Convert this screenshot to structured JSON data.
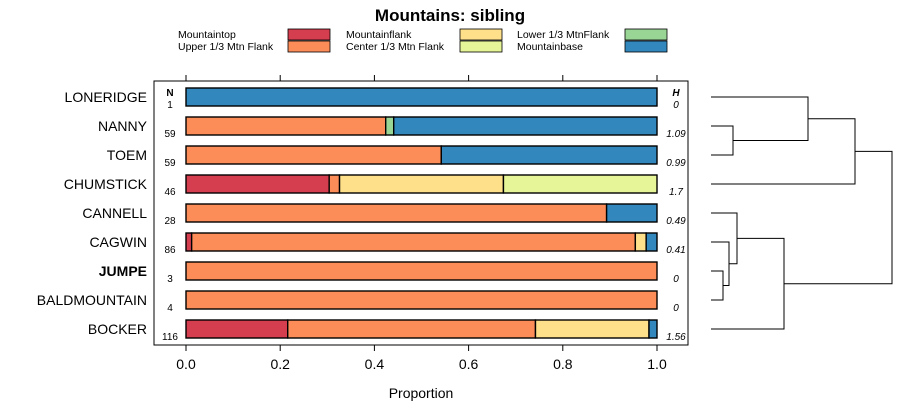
{
  "chart_data": {
    "type": "bar",
    "orientation": "horizontal",
    "stacked": true,
    "title": "Mountains: sibling",
    "xlabel": "Proportion",
    "xlim": [
      0,
      1
    ],
    "xticks": [
      "0.0",
      "0.2",
      "0.4",
      "0.6",
      "0.8",
      "1.0"
    ],
    "n_header": "N",
    "h_header": "H",
    "legend": [
      {
        "name": "Mountaintop",
        "color": "#d53e4f"
      },
      {
        "name": "Upper 1/3 Mtn Flank",
        "color": "#fc8d59"
      },
      {
        "name": "Mountainflank",
        "color": "#fee08b"
      },
      {
        "name": "Center 1/3 Mtn Flank",
        "color": "#e6f598"
      },
      {
        "name": "Lower 1/3 MtnFlank",
        "color": "#99d594"
      },
      {
        "name": "Mountainbase",
        "color": "#3288bd"
      }
    ],
    "categories": [
      "LONERIDGE",
      "NANNY",
      "TOEM",
      "CHUMSTICK",
      "CANNELL",
      "CAGWIN",
      "JUMPE",
      "BALDMOUNTAIN",
      "BOCKER"
    ],
    "bold_categories": [
      "JUMPE"
    ],
    "n": [
      "1",
      "59",
      "59",
      "46",
      "28",
      "86",
      "3",
      "4",
      "116"
    ],
    "h": [
      "0",
      "1.09",
      "0.99",
      "1.7",
      "0.49",
      "0.41",
      "0",
      "0",
      "1.56"
    ],
    "series": [
      {
        "name": "Mountaintop",
        "values": [
          0,
          0,
          0,
          0.304,
          0,
          0.012,
          0,
          0,
          0.216
        ]
      },
      {
        "name": "Upper 1/3 Mtn Flank",
        "values": [
          0,
          0.424,
          0.542,
          0.022,
          0.893,
          0.942,
          1,
          1,
          0.526
        ]
      },
      {
        "name": "Mountainflank",
        "values": [
          0,
          0,
          0,
          0.348,
          0,
          0.023,
          0,
          0,
          0.241
        ]
      },
      {
        "name": "Center 1/3 Mtn Flank",
        "values": [
          0,
          0,
          0,
          0.326,
          0,
          0,
          0,
          0,
          0
        ]
      },
      {
        "name": "Lower 1/3 MtnFlank",
        "values": [
          0,
          0.017,
          0,
          0,
          0,
          0,
          0,
          0,
          0
        ]
      },
      {
        "name": "Mountainbase",
        "values": [
          1,
          0.559,
          0.458,
          0,
          0.107,
          0.023,
          0,
          0,
          0.017
        ]
      }
    ],
    "dendrogram": {
      "description": "hierarchical clustering of the nine rows shown at right",
      "clusters": [
        [
          "NANNY",
          "TOEM"
        ],
        [
          [
            "NANNY",
            "TOEM"
          ],
          "LONERIDGE"
        ],
        [
          "JUMPE",
          "BALDMOUNTAIN"
        ],
        [
          [
            "JUMPE",
            "BALDMOUNTAIN"
          ],
          "CAGWIN"
        ],
        [
          [
            [
              "JUMPE",
              "BALDMOUNTAIN"
            ],
            "CAGWIN"
          ],
          "CANNELL"
        ],
        [
          [
            [
              [
                "JUMPE",
                "BALDMOUNTAIN"
              ],
              "CAGWIN"
            ],
            "CANNELL"
          ],
          "BOCKER"
        ],
        [
          [
            [
              [
                "NANNY",
                "TOEM"
              ],
              "LONERIDGE"
            ]
          ],
          "CHUMSTICK"
        ]
      ]
    }
  }
}
